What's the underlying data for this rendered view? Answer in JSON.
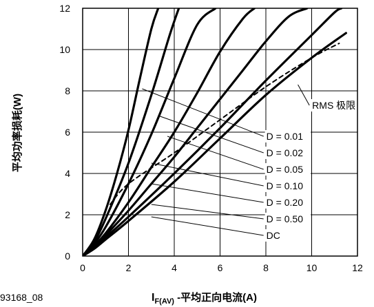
{
  "figure_id": "93168_08",
  "chart_data": {
    "type": "line",
    "xlabel_main": "I",
    "xlabel_sub": "F(AV)",
    "xlabel_rest": " -平均正向电流(A)",
    "ylabel": "平均功率损耗(W)",
    "xlim": [
      0,
      12
    ],
    "ylim": [
      0,
      12
    ],
    "xticks": [
      "0",
      "2",
      "4",
      "6",
      "8",
      "10",
      "12"
    ],
    "yticks": [
      "0",
      "2",
      "4",
      "6",
      "8",
      "10",
      "12"
    ],
    "grid": true,
    "series": [
      {
        "name": "D = 0.01",
        "style": "solid",
        "x": [
          0,
          0.5,
          1,
          1.5,
          2,
          2.5,
          3,
          3.3
        ],
        "y": [
          0,
          0.8,
          2.2,
          4.0,
          6.1,
          8.6,
          11.0,
          12
        ]
      },
      {
        "name": "D = 0.02",
        "style": "solid",
        "x": [
          0,
          0.5,
          1,
          2,
          3,
          3.8,
          4.2
        ],
        "y": [
          0,
          0.7,
          1.8,
          4.5,
          7.8,
          10.7,
          12
        ]
      },
      {
        "name": "D = 0.05",
        "style": "solid",
        "x": [
          0,
          0.5,
          1,
          2,
          3,
          4,
          5,
          5.8
        ],
        "y": [
          0,
          0.6,
          1.4,
          3.5,
          5.9,
          8.6,
          11.2,
          12
        ]
      },
      {
        "name": "D = 0.10",
        "style": "solid",
        "x": [
          0,
          0.5,
          1,
          2,
          3,
          4,
          5,
          6,
          7,
          7.5
        ],
        "y": [
          0,
          0.5,
          1.1,
          2.6,
          4.3,
          6.0,
          7.9,
          9.9,
          11.5,
          12
        ]
      },
      {
        "name": "D = 0.20",
        "style": "solid",
        "x": [
          0,
          0.5,
          1,
          2,
          3,
          4,
          5,
          6,
          7,
          8,
          9,
          9.8
        ],
        "y": [
          0,
          0.4,
          1.0,
          2.2,
          3.5,
          4.8,
          6.2,
          7.6,
          9.0,
          10.4,
          11.6,
          12
        ]
      },
      {
        "name": "D = 0.50",
        "style": "solid",
        "x": [
          0,
          0.5,
          1,
          2,
          4,
          6,
          8,
          10,
          11,
          11.3
        ],
        "y": [
          0,
          0.4,
          0.9,
          1.9,
          4.0,
          6.2,
          8.5,
          10.7,
          11.8,
          12
        ]
      },
      {
        "name": "DC",
        "style": "solid",
        "x": [
          0,
          0.5,
          1,
          2,
          4,
          6,
          8,
          10,
          11.5
        ],
        "y": [
          0,
          0.35,
          0.8,
          1.7,
          3.6,
          5.7,
          7.8,
          9.6,
          10.8
        ]
      },
      {
        "name": "RMS 极限",
        "style": "dashed",
        "x": [
          1.2,
          2,
          4,
          6,
          8,
          10,
          11.2
        ],
        "y": [
          2.5,
          3.5,
          5.0,
          6.6,
          8.2,
          9.6,
          10.3
        ]
      }
    ],
    "annotations": [
      {
        "text": "RMS 极限",
        "x": 9.9,
        "y": 7.3,
        "leader": [
          [
            9.4,
            8.3
          ],
          [
            9.9,
            7.3
          ]
        ]
      },
      {
        "text": "D = 0.01",
        "x": 7.9,
        "y": 5.8,
        "leader": [
          [
            2.6,
            8.1
          ],
          [
            7.9,
            5.8
          ]
        ]
      },
      {
        "text": "D = 0.02",
        "x": 7.9,
        "y": 5.0,
        "leader": [
          [
            3.3,
            6.8
          ],
          [
            7.9,
            5.0
          ]
        ]
      },
      {
        "text": "D = 0.05",
        "x": 7.9,
        "y": 4.2,
        "leader": [
          [
            3.7,
            5.8
          ],
          [
            7.9,
            4.2
          ]
        ]
      },
      {
        "text": "D = 0.10",
        "x": 7.9,
        "y": 3.4,
        "leader": [
          [
            3.0,
            4.5
          ],
          [
            7.9,
            3.4
          ]
        ]
      },
      {
        "text": "D = 0.20",
        "x": 7.9,
        "y": 2.6,
        "leader": [
          [
            3.0,
            3.5
          ],
          [
            7.9,
            2.6
          ]
        ]
      },
      {
        "text": "D = 0.50",
        "x": 7.9,
        "y": 1.8,
        "leader": [
          [
            3.0,
            2.5
          ],
          [
            7.9,
            1.8
          ]
        ]
      },
      {
        "text": "DC",
        "x": 7.9,
        "y": 1.0,
        "leader": [
          [
            3.0,
            1.9
          ],
          [
            7.9,
            1.0
          ]
        ]
      }
    ]
  }
}
